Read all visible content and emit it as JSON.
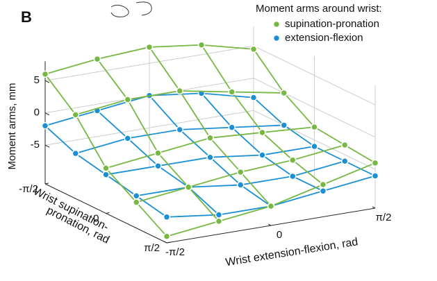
{
  "chart_data": {
    "type": "surface3d",
    "panel_label": "B",
    "legend_title": "Moment arms around wrist:",
    "xlabel": "Wrist extension-flexion, rad",
    "ylabel": [
      "Wrist supination-",
      "pronation, rad"
    ],
    "zlabel": "Moment arms, mm",
    "x": [
      -1.5708,
      -0.7854,
      0,
      0.7854,
      1.5708
    ],
    "y": [
      -1.5708,
      -0.7854,
      0,
      0.7854,
      1.5708
    ],
    "xlim": [
      -1.5708,
      1.5708
    ],
    "ylim": [
      -1.5708,
      1.5708
    ],
    "zlim": [
      -11,
      8
    ],
    "xticks": [
      {
        "value": -1.5708,
        "label": "-π/2"
      },
      0,
      {
        "value": 1.5708,
        "label": "π/2"
      }
    ],
    "yticks": [
      {
        "value": -1.5708,
        "label": "-π/2"
      },
      0,
      {
        "value": 1.5708,
        "label": "π/2"
      }
    ],
    "zticks": [
      -5,
      0,
      5
    ],
    "grid": true,
    "legend": "top-right",
    "series": [
      {
        "name": "supination-pronation",
        "color": "#77b843",
        "z": [
          [
            6,
            7,
            7.5,
            6.5,
            4.5
          ],
          [
            2,
            3,
            3,
            1.5,
            0
          ],
          [
            -4,
            -3,
            -2,
            -2.5,
            -3
          ],
          [
            -7,
            -6,
            -5,
            -4.5,
            -3.5
          ],
          [
            -10,
            -9,
            -8,
            -6,
            -4
          ]
        ]
      },
      {
        "name": "extension-flexion",
        "color": "#1a8fd5",
        "z": [
          [
            -2,
            -1,
            0,
            -1,
            -3
          ],
          [
            -4,
            -3,
            -3,
            -4,
            -5
          ],
          [
            -5,
            -5,
            -5,
            -6,
            -6
          ],
          [
            -6,
            -6,
            -7,
            -7,
            -6
          ],
          [
            -7,
            -8,
            -8,
            -7,
            -6
          ]
        ]
      }
    ]
  }
}
